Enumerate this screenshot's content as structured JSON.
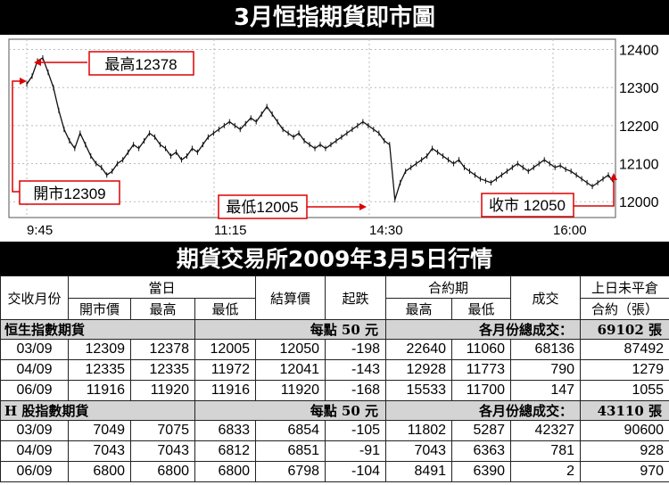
{
  "chart_title": "3月恒指期貨即市圖",
  "table_title": "期貨交易所2009年3月5日行情",
  "chart_data": {
    "type": "line",
    "x_ticks": [
      "9:45",
      "11:15",
      "14:30",
      "16:00"
    ],
    "y_ticks": [
      12000,
      12100,
      12200,
      12300,
      12400
    ],
    "ylim": [
      11970,
      12420
    ],
    "grid": true,
    "series": [
      {
        "values": [
          12309,
          12330,
          12370,
          12378,
          12340,
          12300,
          12240,
          12190,
          12160,
          12140,
          12180,
          12150,
          12120,
          12100,
          12090,
          12070,
          12080,
          12100,
          12110,
          12130,
          12150,
          12140,
          12160,
          12180,
          12170,
          12150,
          12140,
          12120,
          12130,
          12110,
          12120,
          12140,
          12130,
          12150,
          12170,
          12180,
          12190,
          12200,
          12210,
          12200,
          12190,
          12205,
          12220,
          12210,
          12230,
          12250,
          12230,
          12210,
          12190,
          12180,
          12170,
          12180,
          12160,
          12150,
          12140,
          12150,
          12140,
          12150,
          12160,
          12170,
          12180,
          12190,
          12200,
          12210,
          12200,
          12190,
          12180,
          12160,
          12150,
          12005,
          12050,
          12080,
          12090,
          12100,
          12110,
          12120,
          12140,
          12130,
          12120,
          12110,
          12100,
          12110,
          12090,
          12080,
          12070,
          12060,
          12055,
          12050,
          12060,
          12070,
          12080,
          12090,
          12100,
          12090,
          12080,
          12090,
          12100,
          12110,
          12100,
          12090,
          12095,
          12085,
          12080,
          12070,
          12060,
          12050,
          12040,
          12050,
          12060,
          12070,
          12050
        ]
      }
    ],
    "annotations": [
      {
        "label": "最高12378"
      },
      {
        "label": "開市12309"
      },
      {
        "label": "最低12005"
      },
      {
        "label": "收市 12050"
      }
    ]
  },
  "table": {
    "header": {
      "month": "交收月份",
      "day_group": "當日",
      "open": "開市價",
      "high": "最高",
      "low": "最低",
      "settle": "結算價",
      "change": "起跌",
      "contract_group": "合約期",
      "c_high": "最高",
      "c_low": "最低",
      "volume": "成交",
      "oi_1": "上日未平倉",
      "oi_2": "合約（張）"
    },
    "sections": [
      {
        "name": "恒生指數期貨",
        "point_value": "每點 50 元",
        "total_label": "各月份總成交：",
        "total_value": "69102 張",
        "rows": [
          [
            "03/09",
            "12309",
            "12378",
            "12005",
            "12050",
            "-198",
            "22640",
            "11060",
            "68136",
            "87492"
          ],
          [
            "04/09",
            "12335",
            "12335",
            "11972",
            "12041",
            "-143",
            "12928",
            "11773",
            "790",
            "1279"
          ],
          [
            "06/09",
            "11916",
            "11920",
            "11916",
            "11920",
            "-168",
            "15533",
            "11700",
            "147",
            "1055"
          ]
        ]
      },
      {
        "name": "H 股指數期貨",
        "point_value": "每點 50 元",
        "total_label": "各月份總成交：",
        "total_value": "43110 張",
        "rows": [
          [
            "03/09",
            "7049",
            "7075",
            "6833",
            "6854",
            "-105",
            "11802",
            "5287",
            "42327",
            "90600"
          ],
          [
            "04/09",
            "7043",
            "7043",
            "6812",
            "6851",
            "-91",
            "7043",
            "6363",
            "781",
            "928"
          ],
          [
            "06/09",
            "6800",
            "6800",
            "6800",
            "6798",
            "-104",
            "8491",
            "6390",
            "2",
            "970"
          ]
        ]
      }
    ]
  }
}
